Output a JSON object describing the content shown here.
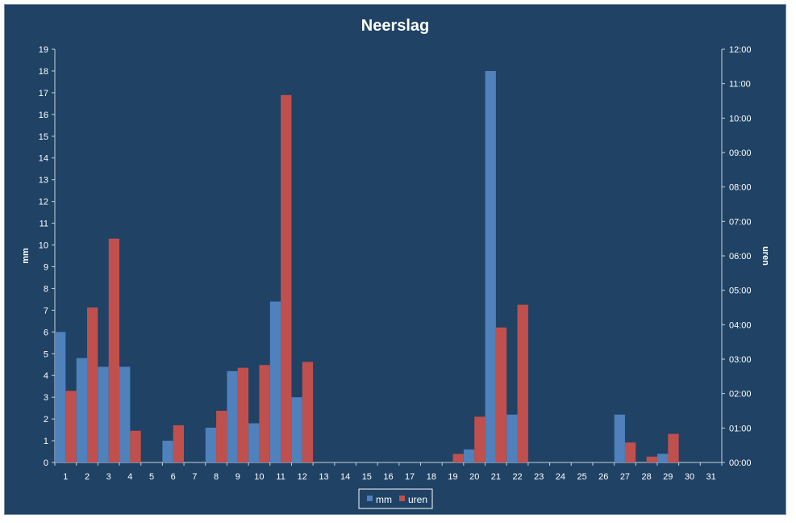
{
  "chart_data": {
    "type": "bar",
    "title": "Neerslag",
    "ylabel": "mm",
    "y2label": "uren",
    "categories": [
      "1",
      "2",
      "3",
      "4",
      "5",
      "6",
      "7",
      "8",
      "9",
      "10",
      "11",
      "12",
      "13",
      "14",
      "15",
      "16",
      "17",
      "18",
      "19",
      "20",
      "21",
      "22",
      "23",
      "24",
      "25",
      "26",
      "27",
      "28",
      "29",
      "30",
      "31"
    ],
    "ylim": [
      0,
      19
    ],
    "y2lim": [
      "00:00",
      "12:00"
    ],
    "yticks": [
      "0",
      "1",
      "2",
      "3",
      "4",
      "5",
      "6",
      "7",
      "8",
      "9",
      "10",
      "11",
      "12",
      "13",
      "14",
      "15",
      "16",
      "17",
      "18",
      "19"
    ],
    "y2ticks": [
      "00:00",
      "01:00",
      "02:00",
      "03:00",
      "04:00",
      "05:00",
      "06:00",
      "07:00",
      "08:00",
      "09:00",
      "10:00",
      "11:00",
      "12:00"
    ],
    "series": [
      {
        "name": "mm",
        "axis": "left",
        "color": "#4f81bd",
        "values": [
          6.0,
          4.8,
          4.4,
          4.4,
          0,
          1.0,
          0,
          1.6,
          4.2,
          1.8,
          7.4,
          3.0,
          0,
          0,
          0,
          0,
          0,
          0,
          0,
          0.6,
          18.0,
          2.2,
          0,
          0,
          0,
          0,
          2.2,
          0,
          0.4,
          0,
          0
        ]
      },
      {
        "name": "uren",
        "axis": "right",
        "unit": "hours",
        "color": "#c0504d",
        "values": [
          2.08,
          4.5,
          6.5,
          0.92,
          0,
          1.08,
          0,
          1.5,
          2.75,
          2.83,
          10.67,
          2.92,
          0,
          0,
          0,
          0,
          0,
          0,
          0.25,
          1.33,
          3.92,
          4.58,
          0,
          0,
          0,
          0,
          0.58,
          0.17,
          0.83,
          0,
          0
        ]
      }
    ],
    "legend_position": "bottom",
    "grid": false
  }
}
